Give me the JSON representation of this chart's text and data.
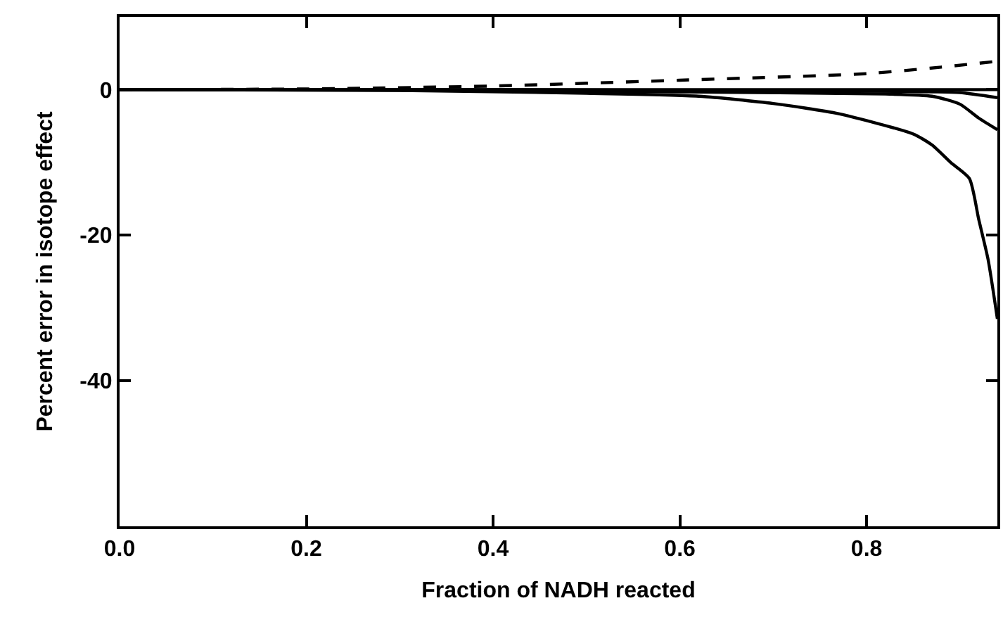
{
  "chart_data": {
    "type": "line",
    "xlabel": "Fraction of NADH reacted",
    "ylabel": "Percent error in isotope effect",
    "xlim": [
      0,
      0.94
    ],
    "ylim": [
      -60,
      10
    ],
    "xticks": [
      {
        "value": 0,
        "label": "0.0"
      },
      0.2,
      0.4,
      0.6,
      0.8
    ],
    "yticks": [
      -40,
      -20,
      0
    ],
    "marker": "none",
    "series": [
      {
        "color": "#000000",
        "line_style": "dashed",
        "x": [
          0,
          0.2,
          0.4,
          0.6,
          0.8,
          0.88,
          0.94
        ],
        "values": [
          0,
          0.1,
          0.5,
          1.3,
          2.2,
          3.1,
          3.9
        ]
      },
      {
        "color": "#000000",
        "line_style": "solid",
        "x": [
          0,
          0.4,
          0.6,
          0.8,
          0.94
        ],
        "values": [
          0,
          0,
          0,
          0,
          0
        ]
      },
      {
        "color": "#000000",
        "line_style": "solid",
        "x": [
          0,
          0.4,
          0.6,
          0.8,
          0.87,
          0.9,
          0.94
        ],
        "values": [
          0,
          0,
          -0.1,
          -0.2,
          -0.3,
          -0.4,
          -1.1
        ]
      },
      {
        "color": "#000000",
        "line_style": "solid",
        "x": [
          0,
          0.4,
          0.6,
          0.82,
          0.87,
          0.9,
          0.92,
          0.94
        ],
        "values": [
          0,
          -0.1,
          -0.3,
          -0.6,
          -0.9,
          -2,
          -3.9,
          -5.5
        ]
      },
      {
        "color": "#000000",
        "line_style": "solid",
        "x": [
          0,
          0.3,
          0.5,
          0.62,
          0.7,
          0.77,
          0.85,
          0.87,
          0.89,
          0.91,
          0.92,
          0.93,
          0.94
        ],
        "values": [
          0,
          -0.1,
          -0.5,
          -0.9,
          -1.9,
          -3.3,
          -6.1,
          -7.6,
          -10,
          -12.2,
          -17.8,
          -23.3,
          -31.5
        ]
      }
    ]
  }
}
